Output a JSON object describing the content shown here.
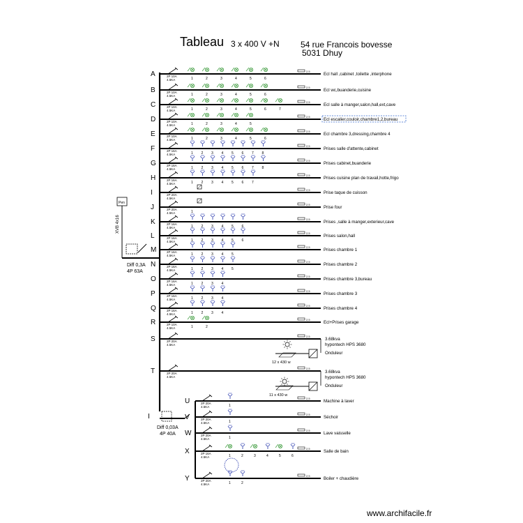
{
  "header": {
    "title": "Tableau",
    "supply": "3 x 400 V +N",
    "address_line1": "54 rue Francois bovesse",
    "address_line2": "5031 Dhuy"
  },
  "main_differential": {
    "line1": "Diff 0,3A",
    "line2": "4P  63A",
    "meter_label": "Pen",
    "cable_label": "XVB 4x16"
  },
  "sub_differential": {
    "label": "I",
    "line1": "Diff 0,03A",
    "line2": "4P  40A"
  },
  "circuits": [
    {
      "id": "A",
      "label": "Ecl hall ,cabinet ,toilette ,interphone",
      "breaker": "2P 10A\n4.5KA",
      "points": [
        "1",
        "2",
        "3",
        "4",
        "5",
        "6"
      ],
      "kind": "light"
    },
    {
      "id": "B",
      "label": "Ecl wc,buanderie,cuisine",
      "breaker": "2P 10A\n4.5KA",
      "points": [
        "1",
        "2",
        "3",
        "4",
        "5",
        "6"
      ],
      "kind": "light"
    },
    {
      "id": "C",
      "label": "Ecl salle à manger,salon,hall,ext,cave",
      "breaker": "2P 10A\n4.5KA",
      "points": [
        "1",
        "2",
        "3",
        "4",
        "5",
        "6",
        "7"
      ],
      "kind": "light"
    },
    {
      "id": "D",
      "label": "Ecl escalier,couloir,chambre1,2,bureau",
      "breaker": "2P 10A\n4.5KA",
      "points": [
        "1",
        "2",
        "3",
        "4",
        "5"
      ],
      "kind": "light",
      "boxed": true
    },
    {
      "id": "E",
      "label": "Ecl chambre 3,dressing,chambre 4",
      "breaker": "2P 10A\n4.5KA",
      "points": [
        "1",
        "2",
        "3",
        "4",
        "5",
        "6"
      ],
      "kind": "light"
    },
    {
      "id": "F",
      "label": "Prises salle d'attente,cabinet",
      "breaker": "2P 16A\n4.5KA",
      "points": [
        "1",
        "2",
        "3",
        "4",
        "5",
        "6",
        "7",
        "8"
      ],
      "kind": "socket"
    },
    {
      "id": "G",
      "label": "Prises cabinet,buanderie",
      "breaker": "2P 16A\n4.5KA",
      "points": [
        "1",
        "2",
        "3",
        "4",
        "5",
        "6",
        "7",
        "8"
      ],
      "kind": "socket"
    },
    {
      "id": "H",
      "label": "Prises  cuisine plan de travail,hotte,frigo",
      "breaker": "2P 16A\n4.5KA",
      "points": [
        "1",
        "2",
        "3",
        "4",
        "5",
        "6",
        "7"
      ],
      "kind": "socket"
    },
    {
      "id": "I",
      "label": "Prise  taque de cuisson",
      "breaker": "2P 20A\n4.5KA",
      "points": [],
      "kind": "special"
    },
    {
      "id": "J",
      "label": "Prise  four",
      "breaker": "2P 20A\n4.5KA",
      "points": [
        "1"
      ],
      "kind": "special"
    },
    {
      "id": "K",
      "label": "Prises ,salle à manger,exterieur,cave",
      "breaker": "2P 16A\n4.5KA",
      "points": [
        "1",
        "2",
        "3",
        "4",
        "5",
        "6"
      ],
      "kind": "socket"
    },
    {
      "id": "L",
      "label": "Prises salon,hall",
      "breaker": "2P 16A\n4.5KA",
      "points": [
        "1",
        "2",
        "3",
        "4",
        "5",
        "6"
      ],
      "kind": "socket"
    },
    {
      "id": "M",
      "label": "Prises chambre 1",
      "breaker": "2P 16A\n4.5KA",
      "points": [
        "1",
        "2",
        "3",
        "4",
        "5"
      ],
      "kind": "socket"
    },
    {
      "id": "N",
      "label": "Prises chambre 2",
      "breaker": "2P 16A\n4.5KA",
      "points": [
        "1",
        "2",
        "3",
        "4",
        "5"
      ],
      "kind": "socket"
    },
    {
      "id": "O",
      "label": "Prises chambre 3,bureau",
      "breaker": "2P 16A\n4.5KA",
      "points": [
        "1",
        "2",
        "3",
        "4"
      ],
      "kind": "socket"
    },
    {
      "id": "P",
      "label": "Prises chambre 3",
      "breaker": "2P 16A\n4.5KA",
      "points": [
        "1",
        "2",
        "3",
        "4"
      ],
      "kind": "socket"
    },
    {
      "id": "Q",
      "label": "Prises chambre 4",
      "breaker": "2P 16A\n4.5KA",
      "points": [
        "1",
        "2",
        "3",
        "4"
      ],
      "kind": "socket"
    },
    {
      "id": "R",
      "label": "Ecl+Prises garage",
      "breaker": "2P 10A\n4.5KA",
      "points": [
        "1",
        "2"
      ],
      "kind": "light"
    },
    {
      "id": "S",
      "label": "",
      "breaker": "2P 20A\n4.5KA",
      "points": [],
      "kind": "none"
    },
    {
      "id": "T",
      "label": "",
      "breaker": "2P 20A\n4.5KA",
      "points": [],
      "kind": "none"
    }
  ],
  "solar": [
    {
      "circuit": "S",
      "power": "3.68kva",
      "model": "hypontech HPS 3680",
      "device": "Onduleur",
      "panels": "12 x 430 w"
    },
    {
      "circuit": "T",
      "power": "3.68kva",
      "model": "hypontech HPS 3680",
      "device": "Onduleur",
      "panels": "11 x 430 w"
    }
  ],
  "sub_circuits": [
    {
      "id": "U",
      "label": "Machine à laver",
      "breaker": "2P 20A\n4.5KA",
      "points": [
        "1"
      ]
    },
    {
      "id": "V",
      "label": "Séchoir",
      "breaker": "2P 20A\n4.5KA",
      "points": [
        "1"
      ]
    },
    {
      "id": "W",
      "label": "Lave vaisselle",
      "breaker": "2P 20A\n4.5KA",
      "points": [
        "1"
      ]
    },
    {
      "id": "X",
      "label": "Salle de bain",
      "breaker": "2P 16A\n4.5KA",
      "points": [
        "1",
        "2",
        "3",
        "4",
        "5",
        "6"
      ]
    },
    {
      "id": "Y",
      "label": "Boiler + chaudière",
      "breaker": "2P 20A\n4.5KA",
      "points": [
        "1",
        "2"
      ]
    }
  ],
  "colors": {
    "line": "#000000",
    "light_symbol": "#3a9a3a",
    "socket_symbol": "#2233aa",
    "highlight_box": "#3366cc"
  },
  "watermark": "www.archifacile.fr"
}
